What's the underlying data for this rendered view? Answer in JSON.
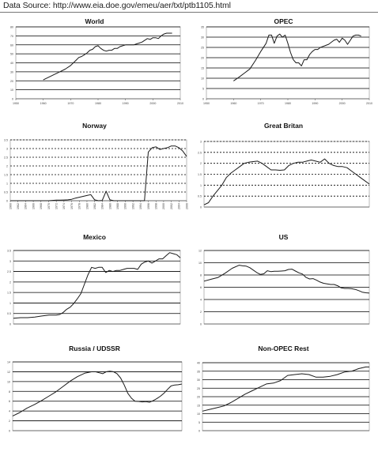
{
  "source": {
    "text": "Data Source: http://www.eia.doe.gov/emeu/aer/txt/ptb1105.html"
  },
  "colors": {
    "line": "#1a1a1a",
    "grid_major": "#000000",
    "grid_minor": "#8c8c8c",
    "axis": "#555555",
    "background": "#ffffff"
  },
  "chart_data": [
    {
      "type": "line",
      "title": "World",
      "xlabel": "",
      "ylabel": "",
      "xlim": [
        1950,
        2010
      ],
      "ylim": [
        0,
        80
      ],
      "xticks": [
        1950,
        1960,
        1970,
        1980,
        1990,
        2000,
        2010
      ],
      "xtick_labels": [
        "1950",
        "1960",
        "1970",
        "1980",
        "1990",
        "2000",
        "2010"
      ],
      "yticks": [
        0,
        10,
        20,
        30,
        40,
        50,
        60,
        70,
        80
      ],
      "ytick_labels": [
        "0",
        "10",
        "20",
        "30",
        "40",
        "50",
        "60",
        "70",
        "80"
      ],
      "grid": true,
      "series": [
        {
          "x": [
            1960,
            1962,
            1964,
            1966,
            1968,
            1970,
            1972,
            1973,
            1974,
            1975,
            1976,
            1977,
            1978,
            1979,
            1980,
            1981,
            1982,
            1983,
            1984,
            1985,
            1986,
            1987,
            1988,
            1989,
            1990,
            1991,
            1992,
            1993,
            1994,
            1995,
            1996,
            1997,
            1998,
            1999,
            2000,
            2001,
            2002,
            2003,
            2004,
            2005,
            2006,
            2007
          ],
          "y": [
            21,
            24,
            27,
            30,
            33,
            37,
            43,
            46,
            47,
            49,
            51,
            54,
            55,
            58,
            59,
            56,
            54,
            53,
            54,
            54,
            56,
            56,
            58,
            59,
            60,
            60,
            60,
            60,
            61,
            62,
            63,
            65,
            67,
            66,
            68,
            68,
            67,
            70,
            72,
            73,
            73,
            73
          ]
        }
      ]
    },
    {
      "type": "line",
      "title": "OPEC",
      "xlabel": "",
      "ylabel": "",
      "xlim": [
        1950,
        2010
      ],
      "ylim": [
        0,
        35
      ],
      "xticks": [
        1950,
        1960,
        1970,
        1980,
        1990,
        2000,
        2010
      ],
      "xtick_labels": [
        "1950",
        "1960",
        "1970",
        "1980",
        "1990",
        "2000",
        "2010"
      ],
      "yticks": [
        0,
        5,
        10,
        15,
        20,
        25,
        30,
        35
      ],
      "ytick_labels": [
        "0",
        "5",
        "10",
        "15",
        "20",
        "25",
        "30",
        "35"
      ],
      "grid": true,
      "series": [
        {
          "x": [
            1960,
            1962,
            1964,
            1966,
            1968,
            1970,
            1972,
            1973,
            1974,
            1975,
            1976,
            1977,
            1978,
            1979,
            1980,
            1981,
            1982,
            1983,
            1984,
            1985,
            1986,
            1987,
            1988,
            1989,
            1990,
            1991,
            1992,
            1993,
            1994,
            1995,
            1996,
            1997,
            1998,
            1999,
            2000,
            2001,
            2002,
            2003,
            2004,
            2005,
            2006,
            2007
          ],
          "y": [
            8.7,
            10.5,
            12.5,
            14.5,
            18.5,
            23,
            27,
            31,
            31,
            27,
            30.5,
            31.5,
            30,
            31,
            27,
            22.5,
            19,
            17.5,
            17.5,
            16,
            19,
            19,
            21.5,
            23,
            24,
            24,
            25,
            25.5,
            26,
            26.5,
            27.5,
            28.5,
            29,
            27.5,
            29.5,
            28.5,
            26.5,
            28.5,
            30.5,
            31,
            31,
            30.5
          ]
        }
      ]
    },
    {
      "type": "line",
      "title": "Norway",
      "xlabel": "",
      "ylabel": "",
      "xlim": [
        1960,
        2006
      ],
      "ylim": [
        0,
        3.5
      ],
      "xticks": [
        1960,
        1962,
        1964,
        1966,
        1968,
        1970,
        1972,
        1974,
        1976,
        1978,
        1980,
        1982,
        1984,
        1986,
        1988,
        1990,
        1992,
        1994,
        1996,
        1998,
        2000,
        2002,
        2004,
        2006
      ],
      "xtick_labels": [
        "1960",
        "1962",
        "1964",
        "1966",
        "1968",
        "1970",
        "1972",
        "1974",
        "1976",
        "1978",
        "1980",
        "1982",
        "1984",
        "1986",
        "1988",
        "1990",
        "1992",
        "1994",
        "1996",
        "1998",
        "2000",
        "2002",
        "2004",
        "2006"
      ],
      "yticks": [
        0,
        0.5,
        1,
        1.5,
        2,
        2.5,
        3,
        3.5
      ],
      "ytick_labels": [
        "0",
        "0.5",
        "1",
        "1.5",
        "2",
        "2.5",
        "3",
        "3.5"
      ],
      "grid": true,
      "series": [
        {
          "x": [
            1960,
            1970,
            1972,
            1973,
            1974,
            1975,
            1976,
            1977,
            1978,
            1979,
            1980,
            1981,
            1982,
            1983,
            1984,
            1985,
            1986,
            1987,
            1988,
            1989,
            1990,
            1991,
            1992,
            1993,
            1994,
            1995,
            1996,
            1997,
            1998,
            1999,
            2000,
            2001,
            2002,
            2003,
            2004,
            2005,
            2006
          ],
          "y": [
            0,
            0,
            0.03,
            0.03,
            0.04,
            0.05,
            0.08,
            0.15,
            0.2,
            0.25,
            0.3,
            0.35,
            0.05,
            0,
            0.02,
            0.55,
            0.05,
            0,
            0,
            0,
            0,
            0,
            0,
            0,
            0,
            0,
            2.8,
            3.05,
            3.1,
            2.95,
            3.0,
            3.05,
            3.15,
            3.15,
            3.05,
            2.85,
            2.55
          ]
        }
      ]
    },
    {
      "type": "line",
      "title": "Great Britan",
      "xlabel": "",
      "ylabel": "",
      "xlim": [
        1970,
        2007
      ],
      "ylim": [
        0,
        3
      ],
      "xticks": [],
      "xtick_labels": [],
      "yticks": [
        0,
        0.5,
        1,
        1.5,
        2,
        2.5,
        3
      ],
      "ytick_labels": [
        "0",
        "0.5",
        "1",
        "1.5",
        "2",
        "2.5",
        "3"
      ],
      "grid": true,
      "series": [
        {
          "x": [
            1970,
            1971,
            1972,
            1973,
            1974,
            1975,
            1976,
            1977,
            1978,
            1979,
            1980,
            1981,
            1982,
            1983,
            1984,
            1985,
            1986,
            1987,
            1988,
            1989,
            1990,
            1991,
            1992,
            1993,
            1994,
            1995,
            1996,
            1997,
            1998,
            1999,
            2000,
            2001,
            2002,
            2003,
            2004,
            2005,
            2006,
            2007
          ],
          "y": [
            0.1,
            0.2,
            0.5,
            0.75,
            1,
            1.35,
            1.55,
            1.7,
            1.85,
            2.0,
            2.05,
            2.08,
            2.1,
            2.0,
            1.85,
            1.7,
            1.7,
            1.68,
            1.7,
            1.9,
            2.0,
            2.05,
            2.05,
            2.1,
            2.15,
            2.1,
            2.05,
            2.2,
            2.0,
            1.9,
            1.85,
            1.85,
            1.8,
            1.65,
            1.5,
            1.35,
            1.2,
            1.05
          ]
        }
      ]
    },
    {
      "type": "line",
      "title": "Mexico",
      "xlabel": "",
      "ylabel": "",
      "xlim": [
        1960,
        2007
      ],
      "ylim": [
        0,
        3.5
      ],
      "xticks": [],
      "xtick_labels": [],
      "yticks": [
        0,
        0.5,
        1,
        1.5,
        2,
        2.5,
        3,
        3.5
      ],
      "ytick_labels": [
        "0",
        "0.5",
        "1",
        "1.5",
        "2",
        "2.5",
        "3",
        "3.5"
      ],
      "grid": true,
      "series": [
        {
          "x": [
            1960,
            1962,
            1964,
            1966,
            1968,
            1970,
            1972,
            1973,
            1974,
            1975,
            1976,
            1977,
            1978,
            1979,
            1980,
            1981,
            1982,
            1983,
            1984,
            1985,
            1986,
            1987,
            1988,
            1989,
            1990,
            1991,
            1992,
            1993,
            1994,
            1995,
            1996,
            1997,
            1998,
            1999,
            2000,
            2001,
            2002,
            2003,
            2004,
            2005,
            2006,
            2007
          ],
          "y": [
            0.27,
            0.3,
            0.3,
            0.33,
            0.38,
            0.42,
            0.42,
            0.45,
            0.55,
            0.7,
            0.8,
            0.98,
            1.2,
            1.45,
            1.9,
            2.35,
            2.7,
            2.65,
            2.7,
            2.7,
            2.45,
            2.55,
            2.5,
            2.55,
            2.55,
            2.6,
            2.65,
            2.65,
            2.65,
            2.6,
            2.85,
            2.95,
            3.0,
            2.9,
            3.0,
            3.1,
            3.1,
            3.25,
            3.4,
            3.35,
            3.3,
            3.15
          ]
        }
      ]
    },
    {
      "type": "line",
      "title": "US",
      "xlabel": "",
      "ylabel": "",
      "xlim": [
        1960,
        2007
      ],
      "ylim": [
        0,
        12
      ],
      "xticks": [],
      "xtick_labels": [],
      "yticks": [
        0,
        2,
        4,
        6,
        8,
        10,
        12
      ],
      "ytick_labels": [
        "0",
        "2",
        "4",
        "6",
        "8",
        "10",
        "12"
      ],
      "grid": true,
      "series": [
        {
          "x": [
            1960,
            1962,
            1964,
            1966,
            1968,
            1970,
            1971,
            1972,
            1973,
            1974,
            1975,
            1976,
            1977,
            1978,
            1979,
            1980,
            1981,
            1982,
            1983,
            1984,
            1985,
            1986,
            1987,
            1988,
            1989,
            1990,
            1991,
            1992,
            1993,
            1994,
            1995,
            1996,
            1997,
            1998,
            1999,
            2000,
            2001,
            2002,
            2003,
            2004,
            2005,
            2006,
            2007
          ],
          "y": [
            7.0,
            7.3,
            7.6,
            8.3,
            9.1,
            9.6,
            9.5,
            9.45,
            9.2,
            8.8,
            8.4,
            8.1,
            8.2,
            8.7,
            8.55,
            8.6,
            8.6,
            8.65,
            8.7,
            8.9,
            8.95,
            8.65,
            8.35,
            8.15,
            7.6,
            7.35,
            7.4,
            7.15,
            6.85,
            6.65,
            6.55,
            6.45,
            6.45,
            6.25,
            5.9,
            5.8,
            5.8,
            5.75,
            5.65,
            5.45,
            5.2,
            5.1,
            5.05
          ]
        }
      ]
    },
    {
      "type": "line",
      "title": "Russia / UDSSR",
      "xlabel": "",
      "ylabel": "",
      "xlim": [
        1960,
        2007
      ],
      "ylim": [
        0,
        14
      ],
      "xticks": [],
      "xtick_labels": [],
      "yticks": [
        0,
        2,
        4,
        6,
        8,
        10,
        12,
        14
      ],
      "ytick_labels": [
        "0",
        "2",
        "4",
        "6",
        "8",
        "10",
        "12",
        "14"
      ],
      "grid": true,
      "series": [
        {
          "x": [
            1960,
            1962,
            1964,
            1966,
            1968,
            1970,
            1972,
            1974,
            1976,
            1978,
            1980,
            1982,
            1983,
            1984,
            1985,
            1986,
            1987,
            1988,
            1989,
            1990,
            1991,
            1992,
            1993,
            1994,
            1995,
            1996,
            1997,
            1998,
            1999,
            2000,
            2001,
            2002,
            2003,
            2004,
            2005,
            2006,
            2007
          ],
          "y": [
            3.0,
            3.7,
            4.6,
            5.3,
            6.1,
            7.0,
            7.9,
            9.0,
            10.1,
            11.0,
            11.7,
            12.0,
            12.0,
            11.8,
            11.6,
            12.0,
            12.1,
            12.0,
            11.6,
            10.7,
            9.3,
            7.6,
            6.6,
            6.0,
            5.95,
            5.85,
            5.9,
            5.8,
            6.1,
            6.5,
            7.0,
            7.6,
            8.4,
            9.1,
            9.3,
            9.35,
            9.5
          ]
        }
      ]
    },
    {
      "type": "line",
      "title": "Non-OPEC Rest",
      "xlabel": "",
      "ylabel": "",
      "xlim": [
        1960,
        2007
      ],
      "ylim": [
        0,
        40
      ],
      "xticks": [],
      "xtick_labels": [],
      "yticks": [
        0,
        5,
        10,
        15,
        20,
        25,
        30,
        35,
        40
      ],
      "ytick_labels": [
        "0",
        "5",
        "10",
        "15",
        "20",
        "25",
        "30",
        "35",
        "40"
      ],
      "grid": true,
      "series": [
        {
          "x": [
            1960,
            1962,
            1964,
            1966,
            1968,
            1970,
            1972,
            1974,
            1976,
            1978,
            1980,
            1982,
            1984,
            1986,
            1988,
            1990,
            1992,
            1994,
            1996,
            1998,
            2000,
            2002,
            2004,
            2006,
            2007
          ],
          "y": [
            11.5,
            12.5,
            13.5,
            14.5,
            16.5,
            19,
            21.5,
            23.5,
            25.5,
            27.5,
            28,
            29.5,
            32.5,
            33,
            33.5,
            33,
            31.5,
            31.5,
            32,
            33,
            34.5,
            35,
            36.5,
            37.5,
            37.5
          ]
        }
      ]
    }
  ]
}
